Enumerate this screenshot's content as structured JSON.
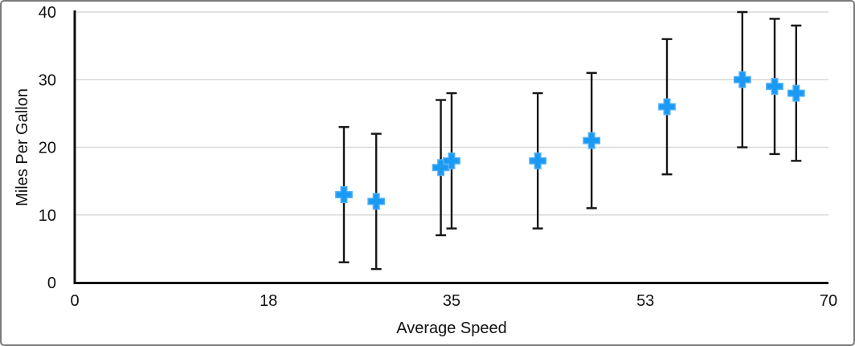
{
  "chart_data": {
    "type": "scatter",
    "title": "",
    "xlabel": "Average Speed",
    "ylabel": "Miles Per Gallon",
    "xlim": [
      0,
      70
    ],
    "ylim": [
      0,
      40
    ],
    "x_tick_values": [
      0,
      18,
      35,
      53,
      70
    ],
    "x_tick_labels": [
      "0",
      "18",
      "35",
      "53",
      "70"
    ],
    "y_tick_values": [
      0,
      10,
      20,
      30,
      40
    ],
    "y_tick_labels": [
      "0",
      "10",
      "20",
      "30",
      "40"
    ],
    "grid": {
      "horizontal": true,
      "vertical": false
    },
    "legend_position": "none",
    "series": [
      {
        "name": "Miles Per Gallon",
        "marker": "plus",
        "points": [
          {
            "x": 25,
            "y": 13,
            "error_plus": 10,
            "error_minus": 10
          },
          {
            "x": 28,
            "y": 12,
            "error_plus": 10,
            "error_minus": 10
          },
          {
            "x": 34,
            "y": 17,
            "error_plus": 10,
            "error_minus": 10
          },
          {
            "x": 35,
            "y": 18,
            "error_plus": 10,
            "error_minus": 10
          },
          {
            "x": 43,
            "y": 18,
            "error_plus": 10,
            "error_minus": 10
          },
          {
            "x": 48,
            "y": 21,
            "error_plus": 10,
            "error_minus": 10
          },
          {
            "x": 55,
            "y": 26,
            "error_plus": 10,
            "error_minus": 10
          },
          {
            "x": 62,
            "y": 30,
            "error_plus": 10,
            "error_minus": 10
          },
          {
            "x": 65,
            "y": 29,
            "error_plus": 10,
            "error_minus": 10
          },
          {
            "x": 67,
            "y": 28,
            "error_plus": 10,
            "error_minus": 10
          }
        ]
      }
    ],
    "colors": {
      "marker": "#1b9af5",
      "marker_edge": "#54b2f4",
      "error_bar": "#161616",
      "axis": "#0f0f0f",
      "gridline": "#d9d9d9",
      "text": "#111111",
      "background": "#ffffff",
      "frame_border": "#7a7a7a"
    }
  }
}
